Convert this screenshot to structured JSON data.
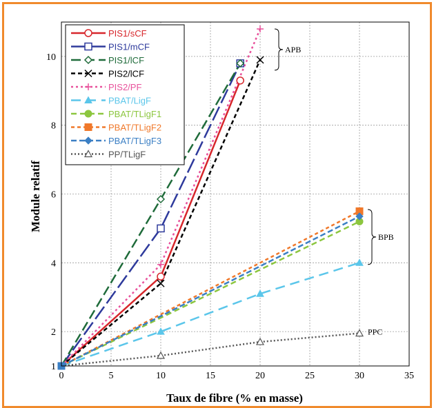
{
  "chart_data": {
    "type": "line",
    "xlabel": "Taux de fibre (% en masse)",
    "ylabel": "Module relatif",
    "xlim": [
      0,
      35
    ],
    "ylim": [
      1,
      11
    ],
    "xticks": [
      "0",
      "5",
      "10",
      "15",
      "20",
      "25",
      "30",
      "35"
    ],
    "yticks": [
      "1",
      "2",
      "4",
      "6",
      "8",
      "10"
    ],
    "grid": true,
    "legend_position": "top-left",
    "series": [
      {
        "name": "PIS1/sCF",
        "color": "#d7262b",
        "dash": "",
        "marker": "circle",
        "x": [
          0,
          10,
          18
        ],
        "y": [
          1,
          3.6,
          9.3
        ]
      },
      {
        "name": "PIS1/mCF",
        "color": "#2e3a9c",
        "dash": "22,6",
        "marker": "square",
        "x": [
          0,
          10,
          18
        ],
        "y": [
          1,
          5.0,
          9.8
        ]
      },
      {
        "name": "PIS1/lCF",
        "color": "#1f6b3a",
        "dash": "14,6",
        "marker": "diamond",
        "x": [
          0,
          10,
          18
        ],
        "y": [
          1,
          5.85,
          9.8
        ]
      },
      {
        "name": "PIS2/lCF",
        "color": "#000000",
        "dash": "6,4",
        "marker": "x",
        "x": [
          0,
          10,
          20
        ],
        "y": [
          1,
          3.4,
          9.9
        ]
      },
      {
        "name": "PIS2/PF",
        "color": "#e8519b",
        "dash": "3,4",
        "marker": "plus",
        "x": [
          0,
          10,
          20
        ],
        "y": [
          1,
          3.95,
          10.8
        ]
      },
      {
        "name": "PBAT/LigF",
        "color": "#5bc6ea",
        "dash": "14,8",
        "marker": "triangle",
        "x": [
          0,
          10,
          20,
          30
        ],
        "y": [
          1,
          2.0,
          3.1,
          4.0
        ]
      },
      {
        "name": "PBAT/TLigF1",
        "color": "#8cc63f",
        "dash": "8,5",
        "marker": "filled-circle",
        "x": [
          0,
          30
        ],
        "y": [
          1,
          5.2
        ]
      },
      {
        "name": "PBAT/TLigF2",
        "color": "#f0782a",
        "dash": "5,4",
        "marker": "filled-square",
        "x": [
          0,
          30
        ],
        "y": [
          1,
          5.5
        ]
      },
      {
        "name": "PBAT/TLigF3",
        "color": "#3b7fc4",
        "dash": "8,4",
        "marker": "filled-diamond",
        "x": [
          0,
          30
        ],
        "y": [
          1,
          5.35
        ]
      },
      {
        "name": "PP/TLigF",
        "color": "#555555",
        "dash": "2,3",
        "marker": "open-triangle",
        "x": [
          0,
          10,
          20,
          30
        ],
        "y": [
          1,
          1.3,
          1.7,
          1.95
        ]
      }
    ],
    "annotations": [
      {
        "text": "APB",
        "brace_y": [
          9.6,
          10.8
        ]
      },
      {
        "text": "BPB",
        "brace_y": [
          3.95,
          5.55
        ]
      },
      {
        "text": "PPC",
        "at_y": 1.95
      }
    ]
  }
}
